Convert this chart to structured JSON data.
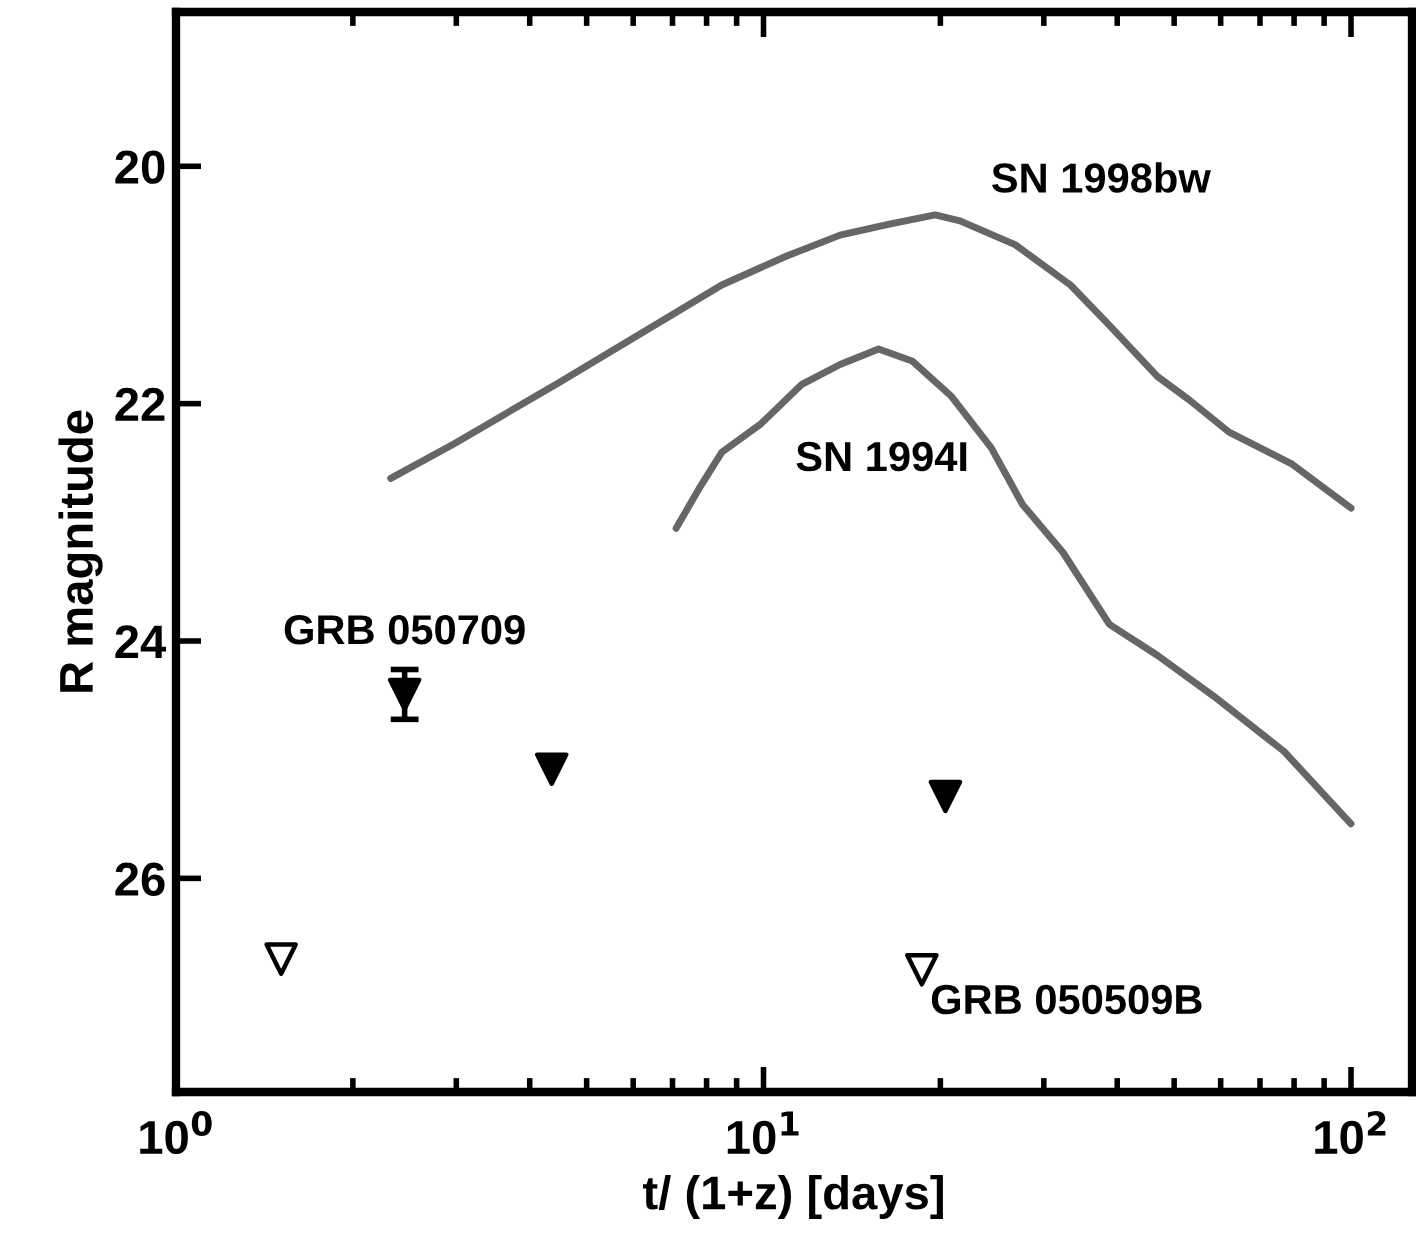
{
  "chart_data": {
    "type": "scatter",
    "xlabel": "t/ (1+z) [days]",
    "ylabel": "R magnitude",
    "log": "x",
    "xlim": [
      1,
      127
    ],
    "ylim": [
      27.8,
      18.7
    ],
    "xticks": [
      {
        "value": 1,
        "label": "10$^{0}$"
      },
      {
        "value": 10,
        "label": "10$^{1}$"
      },
      {
        "value": 100,
        "label": "10$^{2}$"
      }
    ],
    "yticks": [
      20,
      22,
      24,
      26
    ],
    "grid": false,
    "legend": false,
    "series": [
      {
        "name": "SN 1998bw",
        "type": "line",
        "marker": "none",
        "color": "#666666",
        "x": [
          2.32,
          2.97,
          4.46,
          8.49,
          10.9,
          13.5,
          16.3,
          19.6,
          21.6,
          26.8,
          33.3,
          38.8,
          46.8,
          53.1,
          62.0,
          79.4,
          100
        ],
        "values": [
          22.63,
          22.34,
          21.83,
          21.0,
          20.76,
          20.58,
          20.49,
          20.41,
          20.46,
          20.66,
          21.0,
          21.34,
          21.77,
          21.97,
          22.24,
          22.51,
          22.88
        ]
      },
      {
        "name": "SN 1994I",
        "type": "line",
        "marker": "none",
        "color": "#666666",
        "x": [
          7.1,
          7.78,
          8.49,
          9.9,
          11.6,
          13.5,
          15.7,
          17.9,
          20.9,
          24.4,
          27.6,
          32.3,
          38.8,
          46.8,
          58.2,
          76.9,
          100
        ],
        "values": [
          23.05,
          22.71,
          22.41,
          22.17,
          21.84,
          21.67,
          21.54,
          21.64,
          21.94,
          22.37,
          22.85,
          23.25,
          23.86,
          24.12,
          24.46,
          24.93,
          25.54
        ]
      },
      {
        "name": "GRB 050709",
        "marker": "triangle",
        "color": "#000000",
        "x": [
          2.45,
          4.36,
          20.4
        ],
        "values": [
          24.45,
          25.08,
          25.31
        ],
        "errors": [
          0.21,
          null,
          null
        ]
      },
      {
        "name": "GRB 050509B",
        "marker": "triangle",
        "color": "#ffffff",
        "x": [
          1.51,
          18.6
        ],
        "values": [
          26.68,
          26.77
        ]
      }
    ]
  }
}
